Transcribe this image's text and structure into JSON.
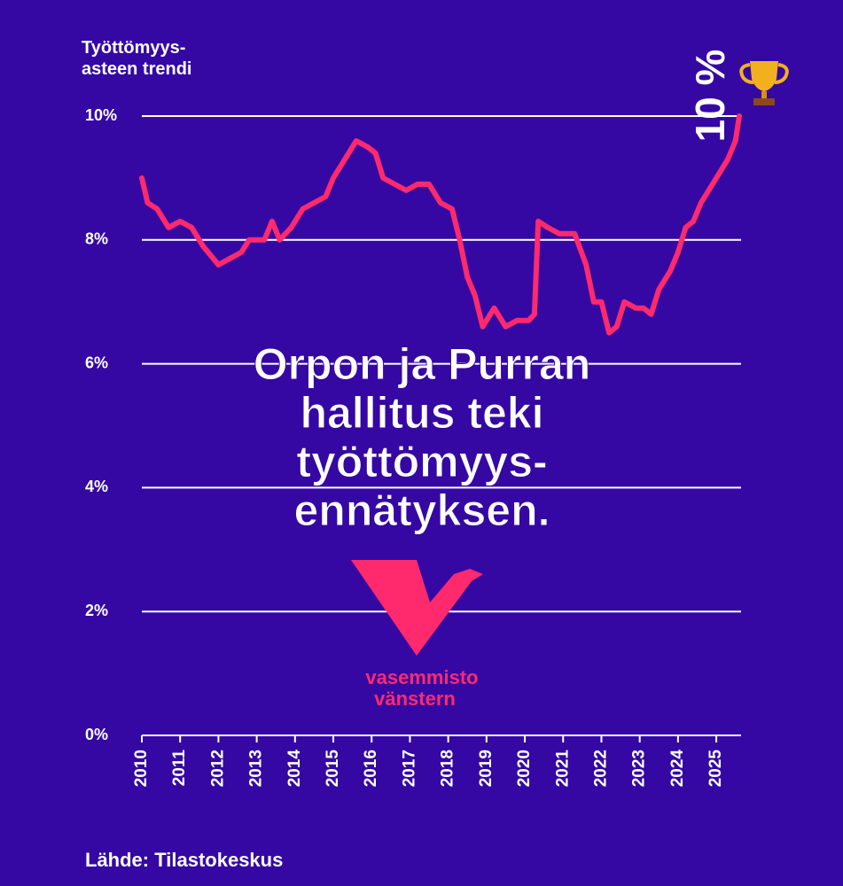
{
  "chart_data": {
    "type": "line",
    "y_label": [
      "Työttömyys-",
      "asteen trendi"
    ],
    "x": [
      2010.0,
      2010.15,
      2010.4,
      2010.7,
      2011.0,
      2011.3,
      2011.6,
      2012.0,
      2012.3,
      2012.6,
      2012.8,
      2013.2,
      2013.4,
      2013.6,
      2013.9,
      2014.2,
      2014.5,
      2014.8,
      2015.0,
      2015.3,
      2015.6,
      2015.9,
      2016.1,
      2016.3,
      2016.6,
      2016.9,
      2017.2,
      2017.5,
      2017.8,
      2018.1,
      2018.3,
      2018.5,
      2018.7,
      2018.9,
      2019.2,
      2019.5,
      2019.8,
      2020.1,
      2020.25,
      2020.35,
      2020.6,
      2020.9,
      2021.3,
      2021.6,
      2021.8,
      2022.0,
      2022.2,
      2022.4,
      2022.6,
      2022.9,
      2023.1,
      2023.3,
      2023.5,
      2023.8,
      2024.0,
      2024.2,
      2024.4,
      2024.6,
      2024.9,
      2025.1,
      2025.3,
      2025.5,
      2025.6
    ],
    "values": [
      9.0,
      8.6,
      8.5,
      8.2,
      8.3,
      8.2,
      7.9,
      7.6,
      7.7,
      7.8,
      8.0,
      8.0,
      8.3,
      8.0,
      8.2,
      8.5,
      8.6,
      8.7,
      9.0,
      9.3,
      9.6,
      9.5,
      9.4,
      9.0,
      8.9,
      8.8,
      8.9,
      8.9,
      8.6,
      8.5,
      8.0,
      7.4,
      7.1,
      6.6,
      6.9,
      6.6,
      6.7,
      6.7,
      6.8,
      8.3,
      8.2,
      8.1,
      8.1,
      7.6,
      7.0,
      7.0,
      6.5,
      6.6,
      7.0,
      6.9,
      6.9,
      6.8,
      7.2,
      7.5,
      7.8,
      8.2,
      8.3,
      8.6,
      8.9,
      9.1,
      9.3,
      9.6,
      10.0
    ],
    "color": "#ff2a6d",
    "xlim": [
      2010,
      2025.6
    ],
    "xticks": [
      2010,
      2011,
      2012,
      2013,
      2014,
      2015,
      2016,
      2017,
      2018,
      2019,
      2020,
      2021,
      2022,
      2023,
      2024,
      2025
    ],
    "ylim": [
      0,
      10
    ],
    "yticks": [
      {
        "value": 0,
        "label": "0%"
      },
      {
        "value": 2,
        "label": "2%"
      },
      {
        "value": 4,
        "label": "4%"
      },
      {
        "value": 6,
        "label": "6%"
      },
      {
        "value": 8,
        "label": "8%"
      },
      {
        "value": 10,
        "label": "10%"
      }
    ],
    "grid": true,
    "annotations": {
      "peak": "10 %",
      "headline": [
        "Orpon ja Purran",
        "hallitus teki",
        "työttömyys-",
        "ennätyksen."
      ],
      "logo": [
        "vasemmisto",
        "vänstern"
      ]
    },
    "source": "Lähde: Tilastokeskus"
  }
}
